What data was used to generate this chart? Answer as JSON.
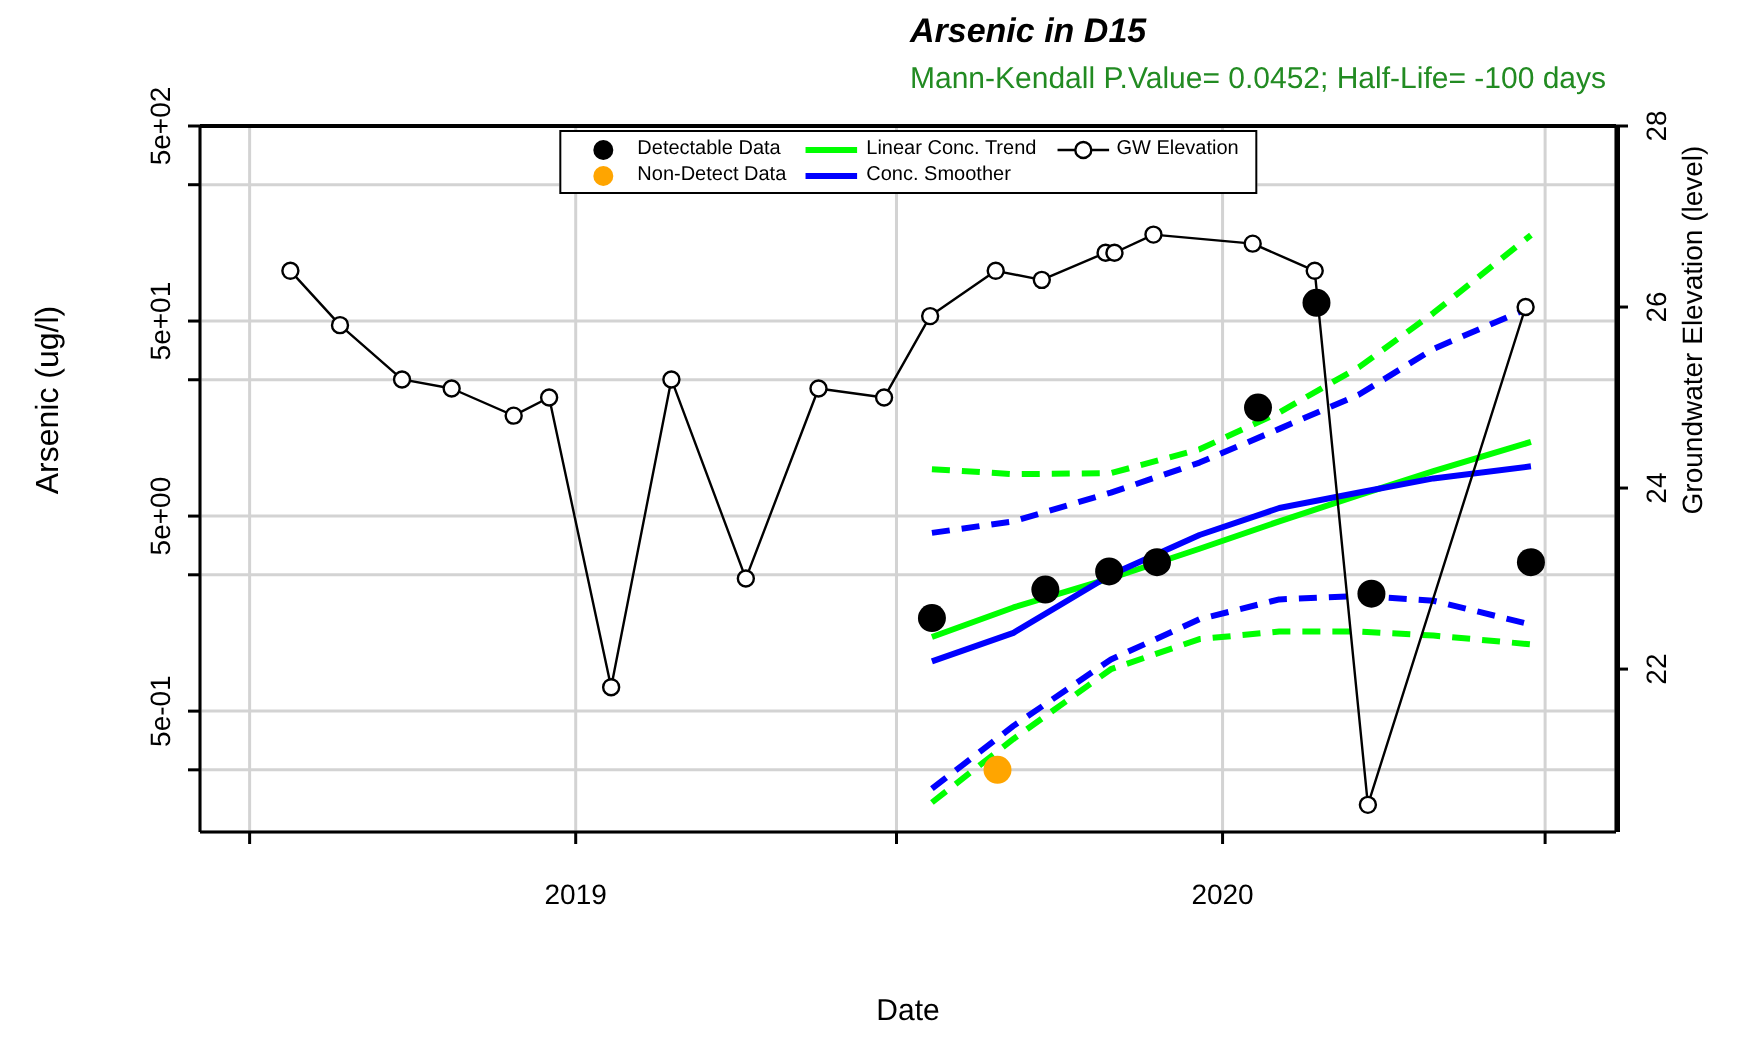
{
  "chart_data": {
    "type": "line",
    "title": "Arsenic in D15",
    "subtitle": "Mann-Kendall P.Value= 0.0452; Half-Life= -100 days",
    "xlabel": "Date",
    "ylabel": "Arsenic (ug/l)",
    "y2label": "Groundwater Elevation (level)",
    "log": "y",
    "grid": true,
    "legend": "top",
    "xlim": [
      "2018-06-03",
      "2020-08-10"
    ],
    "xticks": [
      {
        "value": "2018-07-01",
        "label": null
      },
      {
        "value": "2019-01-01",
        "label": "2019"
      },
      {
        "value": "2019-07-01",
        "label": null
      },
      {
        "value": "2020-01-01",
        "label": "2020"
      },
      {
        "value": "2020-07-01",
        "label": null
      }
    ],
    "ylim": [
      0.12,
      500
    ],
    "yticks": [
      {
        "value": 500,
        "label": "5e+02"
      },
      {
        "value": 250,
        "label": null
      },
      {
        "value": 50,
        "label": "5e+01"
      },
      {
        "value": 25,
        "label": null
      },
      {
        "value": 5,
        "label": "5e+00"
      },
      {
        "value": 2.5,
        "label": null
      },
      {
        "value": 0.5,
        "label": "5e-01"
      },
      {
        "value": 0.25,
        "label": null
      }
    ],
    "y2lim": [
      20.2,
      28
    ],
    "y2ticks": [
      22,
      24,
      26,
      28
    ],
    "series": [
      {
        "type": "scatter",
        "name": "Detectable Data",
        "color": "#000000",
        "marker": "circle",
        "x": [
          "2019-07-21",
          "2019-09-23",
          "2019-10-29",
          "2019-11-25",
          "2020-01-21",
          "2020-02-23",
          "2020-03-25",
          "2020-06-23"
        ],
        "values": [
          1.5,
          2.1,
          2.6,
          2.9,
          18,
          62,
          2.0,
          2.9
        ]
      },
      {
        "type": "scatter",
        "name": "Non-Detect Data",
        "color": "#ffa500",
        "marker": "circle",
        "x": [
          "2019-08-27"
        ],
        "values": [
          0.25
        ]
      },
      {
        "name": "Linear Conc. Trend",
        "color": "#00ff00",
        "line_style": "solid",
        "x": [
          "2019-07-21",
          "2019-09-05",
          "2019-10-30",
          "2019-12-19",
          "2020-02-02",
          "2020-03-18",
          "2020-04-29",
          "2020-06-23"
        ],
        "values": [
          1.2,
          1.7,
          2.4,
          3.4,
          4.7,
          6.4,
          8.5,
          12
        ]
      },
      {
        "color": "#00ff00",
        "line_style": "dashed",
        "x": [
          "2019-07-21",
          "2019-09-05",
          "2019-10-30",
          "2019-12-19",
          "2020-02-02",
          "2020-03-18",
          "2020-04-29",
          "2020-06-23"
        ],
        "values": [
          0.17,
          0.36,
          0.82,
          1.17,
          1.28,
          1.28,
          1.22,
          1.1
        ]
      },
      {
        "color": "#00ff00",
        "line_style": "dashed",
        "x": [
          "2019-07-21",
          "2019-09-05",
          "2019-10-30",
          "2019-12-19",
          "2020-02-02",
          "2020-03-18",
          "2020-04-29",
          "2020-06-23"
        ],
        "values": [
          8.7,
          8.2,
          8.3,
          11,
          17,
          29,
          55,
          138
        ]
      },
      {
        "name": "Conc. Smoother",
        "color": "#0000ff",
        "line_style": "solid",
        "x": [
          "2019-07-21",
          "2019-09-05",
          "2019-10-30",
          "2019-12-19",
          "2020-02-02",
          "2020-03-18",
          "2020-04-29",
          "2020-06-23"
        ],
        "values": [
          0.9,
          1.26,
          2.5,
          4.0,
          5.5,
          6.6,
          7.8,
          9.0
        ]
      },
      {
        "color": "#0000ff",
        "line_style": "dashed",
        "x": [
          "2019-07-21",
          "2019-09-05",
          "2019-10-30",
          "2019-12-19",
          "2020-02-02",
          "2020-03-18",
          "2020-04-29",
          "2020-06-23"
        ],
        "values": [
          0.2,
          0.42,
          0.92,
          1.48,
          1.87,
          1.95,
          1.84,
          1.39
        ]
      },
      {
        "color": "#0000ff",
        "line_style": "dashed",
        "x": [
          "2019-07-21",
          "2019-09-05",
          "2019-10-30",
          "2019-12-19",
          "2020-02-02",
          "2020-03-18",
          "2020-04-29",
          "2020-06-23"
        ],
        "values": [
          4.1,
          4.7,
          6.6,
          9.4,
          14,
          21,
          36,
          59
        ]
      },
      {
        "name": "GW Elevation",
        "color": "#000000",
        "marker": "circle",
        "axis": "y2",
        "x": [
          "2018-07-24",
          "2018-08-21",
          "2018-09-25",
          "2018-10-23",
          "2018-11-27",
          "2018-12-17",
          "2019-01-21",
          "2019-02-24",
          "2019-04-07",
          "2019-05-18",
          "2019-06-24",
          "2019-07-20",
          "2019-08-26",
          "2019-09-21",
          "2019-10-27",
          "2019-11-01",
          "2019-11-23",
          "2020-01-18",
          "2020-02-22",
          "2020-03-23",
          "2020-06-20"
        ],
        "values": [
          26.4,
          25.8,
          25.2,
          25.1,
          24.8,
          25.0,
          21.8,
          25.2,
          23.0,
          25.1,
          25.0,
          25.9,
          26.4,
          26.3,
          26.6,
          26.6,
          26.8,
          26.7,
          26.4,
          20.5,
          26.0
        ]
      }
    ]
  }
}
